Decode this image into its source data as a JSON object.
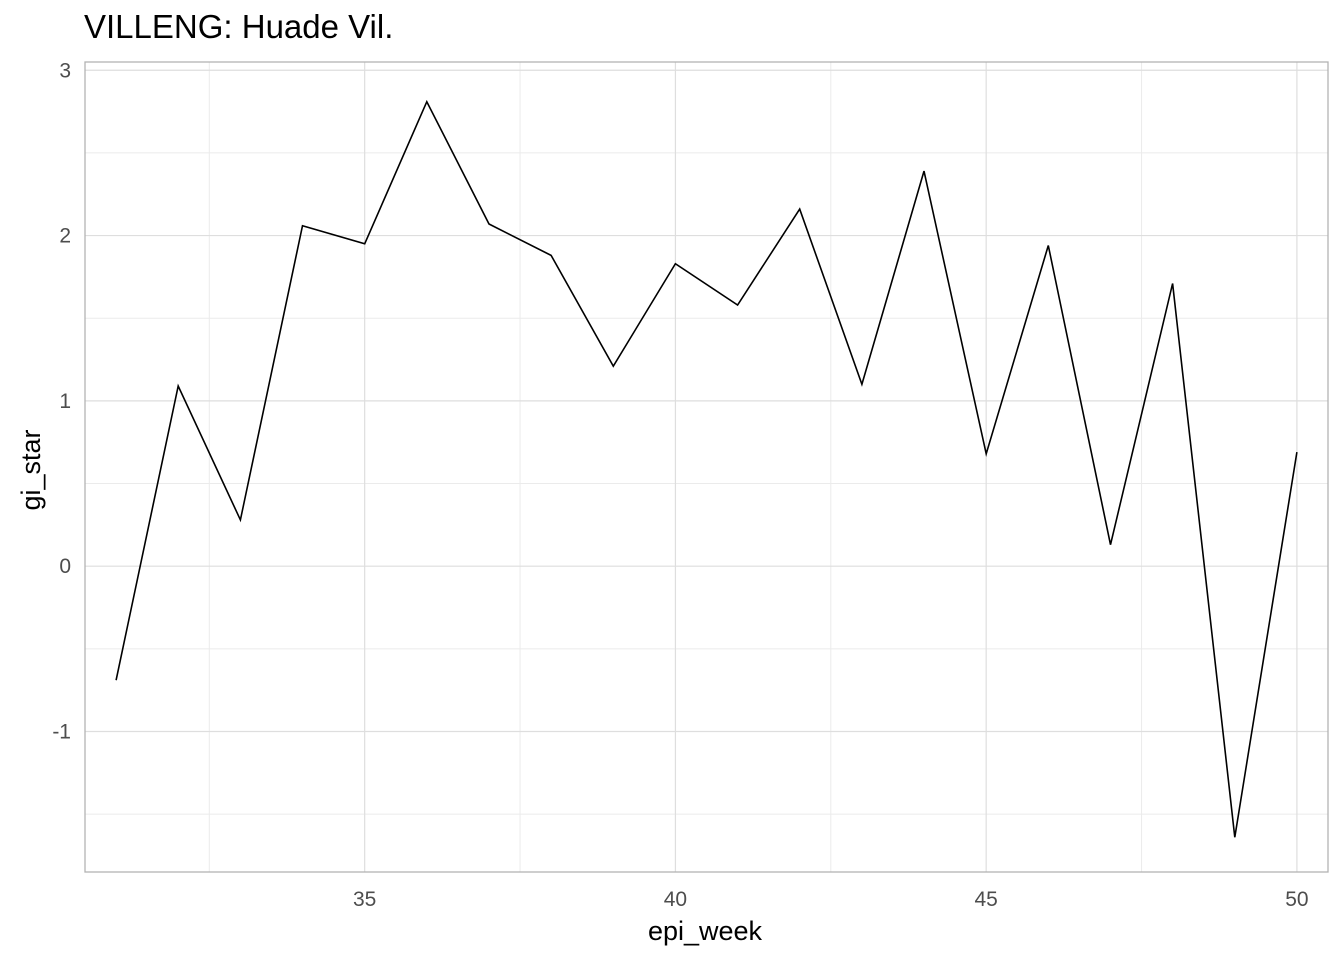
{
  "chart_data": {
    "type": "line",
    "title": "VILLENG: Huade Vil.",
    "xlabel": "epi_week",
    "ylabel": "gi_star",
    "xlim": [
      30.5,
      50.5
    ],
    "ylim": [
      -1.85,
      3.05
    ],
    "x_ticks": [
      35,
      40,
      45,
      50
    ],
    "y_ticks": [
      -1,
      0,
      1,
      2,
      3
    ],
    "grid": true,
    "legend": "none",
    "line_color": "#000000",
    "series": [
      {
        "x": [
          31,
          32,
          33,
          34,
          35,
          36,
          37,
          38,
          39,
          40,
          41,
          42,
          43,
          44,
          45,
          46,
          47,
          48,
          49,
          50
        ],
        "values": [
          -0.69,
          1.09,
          0.28,
          2.06,
          1.95,
          2.81,
          2.07,
          1.88,
          1.21,
          1.83,
          1.58,
          2.16,
          1.1,
          2.39,
          0.68,
          1.94,
          0.13,
          1.71,
          -1.64,
          0.69
        ]
      }
    ]
  }
}
